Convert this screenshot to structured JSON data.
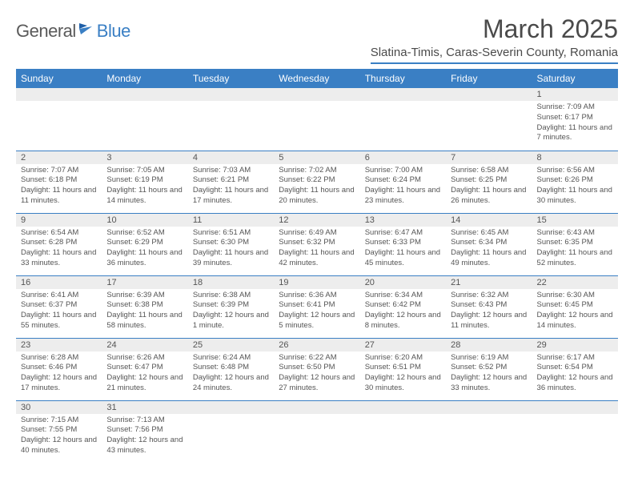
{
  "logo": {
    "textA": "General",
    "textB": "Blue"
  },
  "title": "March 2025",
  "location": "Slatina-Timis, Caras-Severin County, Romania",
  "colors": {
    "accent": "#3a7fc4",
    "header_text": "#ffffff",
    "daynum_bg": "#ededed",
    "body_text": "#555555",
    "title_text": "#4a4a4a"
  },
  "weekdays": [
    "Sunday",
    "Monday",
    "Tuesday",
    "Wednesday",
    "Thursday",
    "Friday",
    "Saturday"
  ],
  "weeks": [
    [
      null,
      null,
      null,
      null,
      null,
      null,
      {
        "n": "1",
        "sr": "7:09 AM",
        "ss": "6:17 PM",
        "dl": "11 hours and 7 minutes."
      }
    ],
    [
      {
        "n": "2",
        "sr": "7:07 AM",
        "ss": "6:18 PM",
        "dl": "11 hours and 11 minutes."
      },
      {
        "n": "3",
        "sr": "7:05 AM",
        "ss": "6:19 PM",
        "dl": "11 hours and 14 minutes."
      },
      {
        "n": "4",
        "sr": "7:03 AM",
        "ss": "6:21 PM",
        "dl": "11 hours and 17 minutes."
      },
      {
        "n": "5",
        "sr": "7:02 AM",
        "ss": "6:22 PM",
        "dl": "11 hours and 20 minutes."
      },
      {
        "n": "6",
        "sr": "7:00 AM",
        "ss": "6:24 PM",
        "dl": "11 hours and 23 minutes."
      },
      {
        "n": "7",
        "sr": "6:58 AM",
        "ss": "6:25 PM",
        "dl": "11 hours and 26 minutes."
      },
      {
        "n": "8",
        "sr": "6:56 AM",
        "ss": "6:26 PM",
        "dl": "11 hours and 30 minutes."
      }
    ],
    [
      {
        "n": "9",
        "sr": "6:54 AM",
        "ss": "6:28 PM",
        "dl": "11 hours and 33 minutes."
      },
      {
        "n": "10",
        "sr": "6:52 AM",
        "ss": "6:29 PM",
        "dl": "11 hours and 36 minutes."
      },
      {
        "n": "11",
        "sr": "6:51 AM",
        "ss": "6:30 PM",
        "dl": "11 hours and 39 minutes."
      },
      {
        "n": "12",
        "sr": "6:49 AM",
        "ss": "6:32 PM",
        "dl": "11 hours and 42 minutes."
      },
      {
        "n": "13",
        "sr": "6:47 AM",
        "ss": "6:33 PM",
        "dl": "11 hours and 45 minutes."
      },
      {
        "n": "14",
        "sr": "6:45 AM",
        "ss": "6:34 PM",
        "dl": "11 hours and 49 minutes."
      },
      {
        "n": "15",
        "sr": "6:43 AM",
        "ss": "6:35 PM",
        "dl": "11 hours and 52 minutes."
      }
    ],
    [
      {
        "n": "16",
        "sr": "6:41 AM",
        "ss": "6:37 PM",
        "dl": "11 hours and 55 minutes."
      },
      {
        "n": "17",
        "sr": "6:39 AM",
        "ss": "6:38 PM",
        "dl": "11 hours and 58 minutes."
      },
      {
        "n": "18",
        "sr": "6:38 AM",
        "ss": "6:39 PM",
        "dl": "12 hours and 1 minute."
      },
      {
        "n": "19",
        "sr": "6:36 AM",
        "ss": "6:41 PM",
        "dl": "12 hours and 5 minutes."
      },
      {
        "n": "20",
        "sr": "6:34 AM",
        "ss": "6:42 PM",
        "dl": "12 hours and 8 minutes."
      },
      {
        "n": "21",
        "sr": "6:32 AM",
        "ss": "6:43 PM",
        "dl": "12 hours and 11 minutes."
      },
      {
        "n": "22",
        "sr": "6:30 AM",
        "ss": "6:45 PM",
        "dl": "12 hours and 14 minutes."
      }
    ],
    [
      {
        "n": "23",
        "sr": "6:28 AM",
        "ss": "6:46 PM",
        "dl": "12 hours and 17 minutes."
      },
      {
        "n": "24",
        "sr": "6:26 AM",
        "ss": "6:47 PM",
        "dl": "12 hours and 21 minutes."
      },
      {
        "n": "25",
        "sr": "6:24 AM",
        "ss": "6:48 PM",
        "dl": "12 hours and 24 minutes."
      },
      {
        "n": "26",
        "sr": "6:22 AM",
        "ss": "6:50 PM",
        "dl": "12 hours and 27 minutes."
      },
      {
        "n": "27",
        "sr": "6:20 AM",
        "ss": "6:51 PM",
        "dl": "12 hours and 30 minutes."
      },
      {
        "n": "28",
        "sr": "6:19 AM",
        "ss": "6:52 PM",
        "dl": "12 hours and 33 minutes."
      },
      {
        "n": "29",
        "sr": "6:17 AM",
        "ss": "6:54 PM",
        "dl": "12 hours and 36 minutes."
      }
    ],
    [
      {
        "n": "30",
        "sr": "7:15 AM",
        "ss": "7:55 PM",
        "dl": "12 hours and 40 minutes."
      },
      {
        "n": "31",
        "sr": "7:13 AM",
        "ss": "7:56 PM",
        "dl": "12 hours and 43 minutes."
      },
      null,
      null,
      null,
      null,
      null
    ]
  ],
  "labels": {
    "sunrise": "Sunrise:",
    "sunset": "Sunset:",
    "daylight": "Daylight:"
  }
}
